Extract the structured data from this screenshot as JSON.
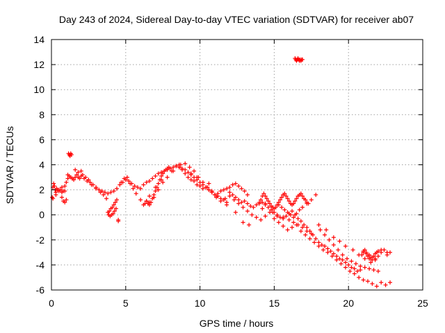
{
  "chart_data": {
    "type": "scatter",
    "title": "Day 243 of 2024, Sidereal Day-to-day VTEC variation (SDTVAR) for receiver ab07",
    "xlabel": "GPS time / hours",
    "ylabel": "SDTVAR / TECUs",
    "xlim": [
      0,
      25
    ],
    "ylim": [
      -6,
      14
    ],
    "xticks": [
      "0",
      "5",
      "10",
      "15",
      "20",
      "25"
    ],
    "yticks": [
      "-6",
      "-4",
      "-2",
      "0",
      "2",
      "4",
      "6",
      "8",
      "10",
      "12",
      "14"
    ],
    "grid": true,
    "marker": "+",
    "color": "#ff0000",
    "series": [
      {
        "name": "SDTVAR",
        "x": [
          0.05,
          0.1,
          0.15,
          0.2,
          0.25,
          0.3,
          0.35,
          0.4,
          0.5,
          0.6,
          0.7,
          0.8,
          0.9,
          1.0,
          1.1,
          1.2,
          1.3,
          1.4,
          1.5,
          1.6,
          1.7,
          1.8,
          1.9,
          2.0,
          2.1,
          2.2,
          2.4,
          2.6,
          2.8,
          3.0,
          3.2,
          3.4,
          3.6,
          3.8,
          4.0,
          4.2,
          4.4,
          4.6,
          4.8,
          5.0,
          5.2,
          5.4,
          5.6,
          5.8,
          6.0,
          6.2,
          6.4,
          6.6,
          6.8,
          7.0,
          7.2,
          7.4,
          7.6,
          7.8,
          8.0,
          8.2,
          8.4,
          8.6,
          8.8,
          9.0,
          9.2,
          9.4,
          9.6,
          9.8,
          10.0,
          10.2,
          10.4,
          10.6,
          10.8,
          11.0,
          11.2,
          11.4,
          11.6,
          11.8,
          12.0,
          12.2,
          12.4,
          12.6,
          12.8,
          13.0,
          13.2,
          13.4,
          13.6,
          13.8,
          14.0,
          14.2,
          14.4,
          14.6,
          14.8,
          15.0,
          15.2,
          15.4,
          15.6,
          15.8,
          16.0,
          16.2,
          16.4,
          16.6,
          16.8,
          17.0,
          17.2,
          17.4,
          17.6,
          17.8,
          18.0,
          18.2,
          18.4,
          18.6,
          18.8,
          19.0,
          19.2,
          19.4,
          19.6,
          19.8,
          20.0,
          20.2,
          20.4,
          20.6,
          20.8,
          21.0,
          21.2,
          21.4,
          21.6,
          21.8,
          22.0,
          22.2,
          22.4,
          22.6,
          22.8,
          0.1,
          0.3,
          0.5,
          0.7,
          0.9,
          1.1,
          1.15,
          1.2,
          1.25,
          1.3,
          1.35,
          0.7,
          0.8,
          0.9,
          1.0,
          1.6,
          1.8,
          2.0,
          2.3,
          2.5,
          2.7,
          3.0,
          3.3,
          3.5,
          3.7,
          3.85,
          3.95,
          4.05,
          4.15,
          4.25,
          4.35,
          4.5,
          4.7,
          4.9,
          5.1,
          5.3,
          5.5,
          5.7,
          6.0,
          6.3,
          6.6,
          6.9,
          7.2,
          7.5,
          7.8,
          8.1,
          8.4,
          8.7,
          9.0,
          9.3,
          9.6,
          9.9,
          10.2,
          10.5,
          10.8,
          11.1,
          11.4,
          11.7,
          12.0,
          12.3,
          12.6,
          12.9,
          13.2,
          13.5,
          13.8,
          14.1,
          14.4,
          14.7,
          15.0,
          15.3,
          15.6,
          15.9,
          16.2,
          16.5,
          16.8,
          17.1,
          17.4,
          17.7,
          18.0,
          18.3,
          18.6,
          18.9,
          19.2,
          19.5,
          19.8,
          20.1,
          20.4,
          20.7,
          21.0,
          21.3,
          21.6,
          21.9,
          22.2,
          22.5,
          22.8,
          4.5,
          6.2,
          6.4,
          6.6,
          7.0,
          7.4,
          8.2,
          8.6,
          9.4,
          9.8,
          10.6,
          11.2,
          11.8,
          12.4,
          12.9,
          13.3,
          14.2,
          14.4,
          14.9,
          15.2,
          15.6,
          16.0,
          16.3,
          16.6,
          16.9,
          17.2,
          17.5,
          18.0,
          18.5,
          19.0,
          19.4,
          19.8,
          20.3,
          20.7,
          21.1,
          21.5,
          21.8,
          16.4,
          16.45,
          16.5,
          16.55,
          16.6,
          16.65,
          16.7,
          16.75,
          16.8,
          16.85,
          16.9,
          15.3,
          15.5,
          15.7,
          15.9,
          16.1,
          16.3,
          16.5,
          16.7,
          16.9,
          17.2,
          17.5,
          17.8,
          18.1,
          18.4,
          18.7,
          19.0,
          19.3,
          19.6,
          19.9,
          20.2,
          20.5,
          20.8,
          21.1,
          21.4,
          21.7,
          22.0,
          20.9,
          21.0,
          21.1,
          21.2,
          21.3,
          21.4,
          21.5,
          21.6,
          21.7,
          21.8,
          21.9,
          22.0,
          22.2,
          22.6,
          8.6,
          8.8,
          9.0,
          9.2,
          9.4,
          9.6,
          9.8,
          10.0,
          10.2,
          10.4,
          10.6,
          10.8,
          11.0,
          11.2,
          11.4,
          11.6,
          11.8,
          12.0,
          12.2,
          12.4,
          12.6,
          12.8,
          13.0,
          13.2,
          3.8,
          3.9,
          4.0,
          4.1,
          4.2,
          4.3,
          4.4,
          6.4,
          6.5,
          6.6,
          6.7,
          6.8,
          6.9,
          7.0,
          7.1,
          7.2,
          7.3,
          7.4,
          7.5,
          7.6,
          7.7,
          7.8,
          7.9,
          14.0,
          14.1,
          14.2,
          14.3,
          14.4,
          14.5,
          14.6,
          14.7,
          14.8,
          14.9,
          15.0,
          15.1,
          15.2,
          15.3,
          15.4,
          15.5,
          15.6,
          15.7,
          15.8,
          15.9,
          16.0,
          16.1,
          16.2,
          16.3,
          16.4,
          16.5,
          16.6,
          16.7,
          16.8,
          16.9,
          17.0,
          17.1,
          17.2,
          17.3
        ],
        "y": [
          1.4,
          2.2,
          2.5,
          2.3,
          2.0,
          1.8,
          2.1,
          2.0,
          1.9,
          2.0,
          1.8,
          1.9,
          2.3,
          2.6,
          2.9,
          3.1,
          3.0,
          2.9,
          2.8,
          3.0,
          3.2,
          3.0,
          2.9,
          3.1,
          3.2,
          2.9,
          2.7,
          2.6,
          2.4,
          2.2,
          2.0,
          1.9,
          1.8,
          1.7,
          1.8,
          1.9,
          2.1,
          2.4,
          2.6,
          2.8,
          2.7,
          2.5,
          2.3,
          2.2,
          2.1,
          2.4,
          2.6,
          2.7,
          2.9,
          3.1,
          3.3,
          3.4,
          3.5,
          3.6,
          3.7,
          3.8,
          3.9,
          3.8,
          3.7,
          3.6,
          3.4,
          3.2,
          3.0,
          2.8,
          2.6,
          2.4,
          2.2,
          2.0,
          1.8,
          1.6,
          1.7,
          1.9,
          2.0,
          2.1,
          1.8,
          1.6,
          1.4,
          1.2,
          1.0,
          1.1,
          0.9,
          0.7,
          0.6,
          0.8,
          0.9,
          1.0,
          0.8,
          0.6,
          0.4,
          0.2,
          0.0,
          -0.2,
          -0.3,
          -0.1,
          0.1,
          0.3,
          0.0,
          -0.3,
          -0.5,
          -0.8,
          -1.0,
          -1.3,
          -1.6,
          -1.9,
          -2.2,
          -2.4,
          -2.5,
          -2.7,
          -2.9,
          -3.1,
          -3.3,
          -3.5,
          -3.6,
          -3.8,
          -4.0,
          -4.2,
          -4.3,
          -4.5,
          -4.4,
          -2.9,
          -3.0,
          -3.2,
          -3.4,
          -3.5,
          -3.3,
          -3.0,
          -2.8,
          -3.2,
          -3.0,
          1.3,
          1.6,
          2.0,
          2.2,
          1.9,
          3.2,
          4.9,
          4.8,
          4.7,
          4.9,
          4.8,
          1.4,
          1.1,
          1.0,
          1.2,
          3.6,
          3.4,
          3.5,
          3.0,
          2.8,
          2.4,
          2.1,
          1.8,
          1.6,
          1.3,
          0.0,
          -0.1,
          0.0,
          0.1,
          0.3,
          0.5,
          -0.5,
          2.6,
          2.9,
          3.0,
          2.5,
          2.1,
          1.7,
          1.2,
          0.9,
          1.0,
          1.4,
          2.0,
          2.6,
          3.0,
          3.5,
          3.9,
          4.0,
          4.1,
          3.8,
          3.5,
          3.0,
          2.6,
          2.2,
          1.8,
          1.4,
          1.1,
          1.3,
          1.5,
          1.2,
          0.9,
          0.6,
          0.3,
          0.0,
          -0.2,
          -0.4,
          -0.1,
          0.2,
          -0.3,
          -0.6,
          -0.9,
          -1.2,
          -1.0,
          -0.8,
          -1.3,
          -1.6,
          -1.9,
          -2.2,
          -2.5,
          -2.8,
          -3.0,
          -3.3,
          -3.6,
          -3.9,
          -4.2,
          -4.5,
          -4.7,
          -5.0,
          -5.2,
          -5.3,
          -5.5,
          -5.7,
          -5.4,
          -5.6,
          -5.4,
          -0.4,
          0.8,
          1.1,
          1.5,
          2.2,
          2.8,
          3.5,
          4.0,
          3.3,
          3.0,
          2.5,
          1.5,
          0.8,
          0.2,
          -0.6,
          -0.8,
          0.5,
          0.9,
          0.2,
          -0.1,
          -0.2,
          -0.4,
          -0.6,
          -0.8,
          -1.0,
          -1.3,
          -1.5,
          -0.8,
          -1.2,
          -1.8,
          -2.1,
          -2.5,
          -2.8,
          -3.2,
          -3.5,
          -3.8,
          -3.6,
          12.5,
          12.4,
          12.3,
          12.4,
          12.5,
          12.4,
          12.3,
          12.4,
          12.3,
          12.4,
          12.4,
          0.8,
          0.6,
          0.4,
          0.2,
          0.0,
          -0.2,
          0.1,
          0.4,
          0.6,
          0.9,
          1.2,
          1.6,
          -1.2,
          -1.6,
          -2.0,
          -2.4,
          -2.8,
          -3.2,
          -3.5,
          -3.7,
          -3.9,
          -4.1,
          -4.2,
          -4.3,
          -4.4,
          -4.5,
          -3.2,
          -3.0,
          -2.8,
          -3.1,
          -3.3,
          -3.5,
          -3.4,
          -3.6,
          -3.3,
          -3.1,
          -3.0,
          -2.9,
          -2.8,
          -3.0,
          3.8,
          3.6,
          3.3,
          3.0,
          2.8,
          2.7,
          2.4,
          2.3,
          2.1,
          2.2,
          2.0,
          1.9,
          1.6,
          1.5,
          1.3,
          1.2,
          1.0,
          2.2,
          2.4,
          2.5,
          2.3,
          2.1,
          1.9,
          1.6,
          0.2,
          0.3,
          0.5,
          0.6,
          0.8,
          1.0,
          1.2,
          1.1,
          0.9,
          0.8,
          1.0,
          1.3,
          1.6,
          1.9,
          2.2,
          2.5,
          2.8,
          3.1,
          3.3,
          3.5,
          3.6,
          3.7,
          3.8,
          1.0,
          1.2,
          1.5,
          1.7,
          1.5,
          1.3,
          1.1,
          0.9,
          0.7,
          0.6,
          0.5,
          0.6,
          0.8,
          1.0,
          1.2,
          1.4,
          1.6,
          1.7,
          1.5,
          1.3,
          1.1,
          0.9,
          0.8,
          0.9,
          1.1,
          1.3,
          1.5,
          1.6,
          1.7,
          1.5,
          1.3,
          1.2,
          1.0,
          0.9
        ]
      }
    ]
  }
}
